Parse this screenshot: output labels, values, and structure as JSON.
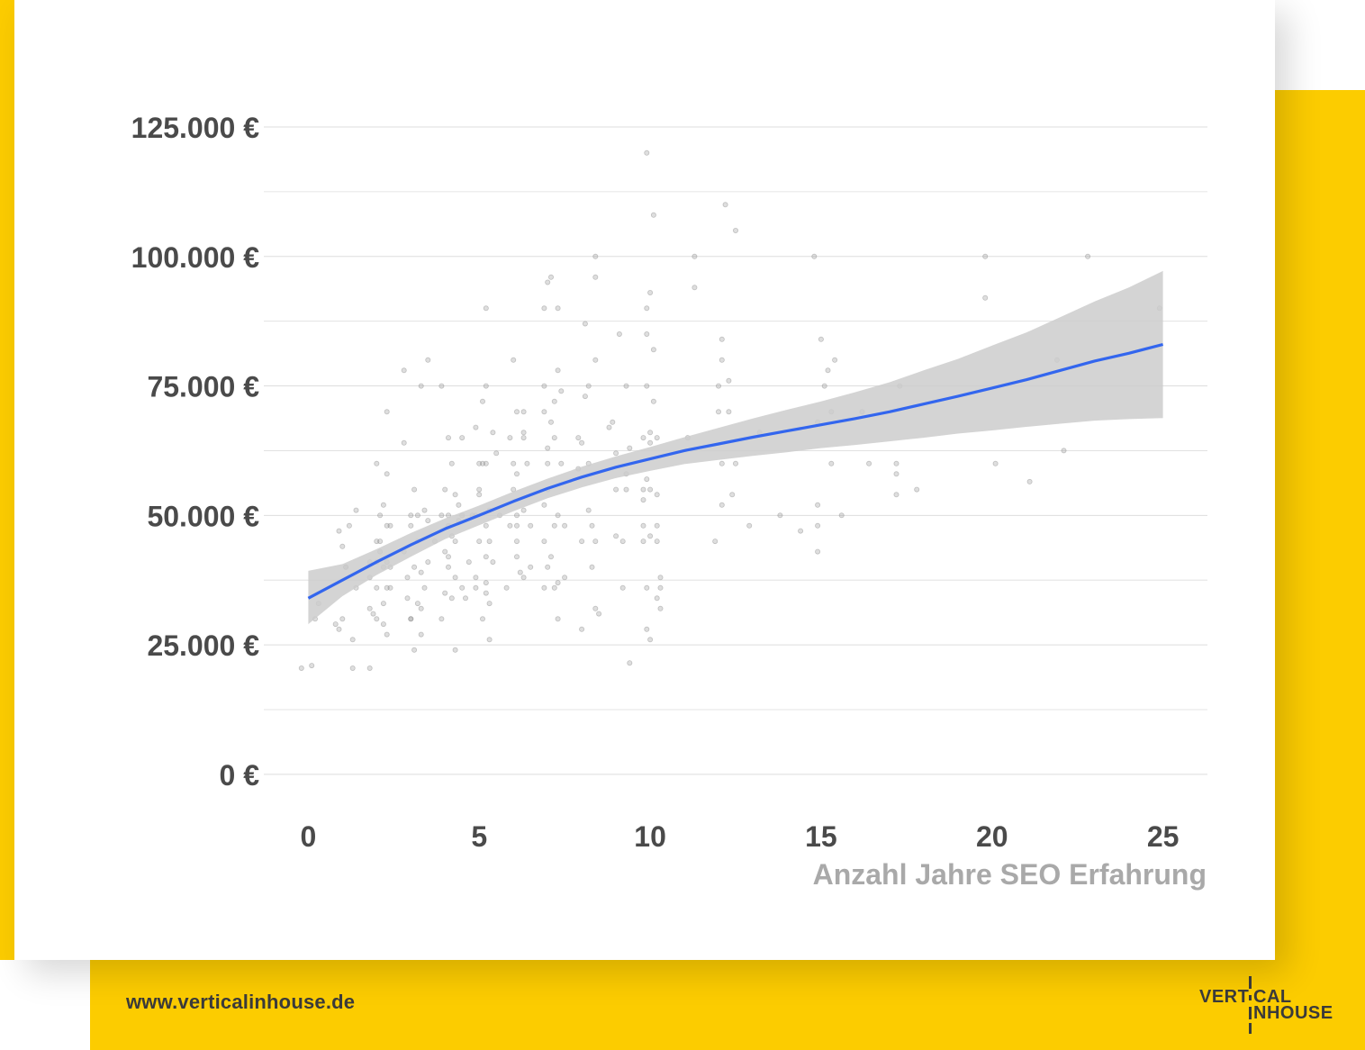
{
  "colors": {
    "accent_yellow": "#fccc00",
    "card": "#ffffff",
    "grid": "#dddddd",
    "tick_text": "#4a4a4a",
    "xlabel_text": "#a9a9a9",
    "points": "#888888",
    "trend_line": "#3366ee",
    "confidence_band": "#cccccc",
    "footer_text": "#3a3a3a"
  },
  "footer": {
    "url": "www.verticalinhouse.de"
  },
  "logo": {
    "text": "VERTICAL INHOUSE",
    "icon": "vertical-inhouse-logo"
  },
  "chart_data": {
    "type": "scatter",
    "title": "",
    "xlabel": "Anzahl Jahre SEO Erfahrung",
    "ylabel": "",
    "xlim": [
      -1.3,
      26.3
    ],
    "ylim": [
      -3500,
      133000
    ],
    "x_ticks": [
      0,
      5,
      10,
      15,
      20,
      25
    ],
    "x_tick_labels": [
      "0",
      "5",
      "10",
      "15",
      "20",
      "25"
    ],
    "y_ticks": [
      0,
      25000,
      50000,
      75000,
      100000,
      125000
    ],
    "y_tick_labels": [
      "0 €",
      "25.000 €",
      "50.000 €",
      "75.000 €",
      "100.000 €",
      "125.000 €"
    ],
    "minor_gridlines_y": [
      12500,
      37500,
      62500,
      87500,
      112500
    ],
    "grid": true,
    "legend": "none",
    "series": [
      {
        "type": "scatter",
        "points": [
          [
            -0.2,
            20500
          ],
          [
            0.1,
            21000
          ],
          [
            0.2,
            30000
          ],
          [
            0.3,
            33000
          ],
          [
            0.8,
            29000
          ],
          [
            0.9,
            28000
          ],
          [
            0.9,
            47000
          ],
          [
            1.0,
            30000
          ],
          [
            1.0,
            44000
          ],
          [
            1.1,
            40000
          ],
          [
            1.1,
            40000
          ],
          [
            1.2,
            48000
          ],
          [
            1.3,
            26000
          ],
          [
            1.3,
            20500
          ],
          [
            1.4,
            36000
          ],
          [
            1.4,
            51000
          ],
          [
            1.8,
            38000
          ],
          [
            1.8,
            41000
          ],
          [
            1.8,
            20500
          ],
          [
            1.8,
            32000
          ],
          [
            1.9,
            31000
          ],
          [
            2.0,
            45000
          ],
          [
            2.0,
            60000
          ],
          [
            2.0,
            30000
          ],
          [
            2.0,
            36000
          ],
          [
            2.0,
            41000
          ],
          [
            2.1,
            43000
          ],
          [
            2.1,
            45000
          ],
          [
            2.1,
            50000
          ],
          [
            2.2,
            52000
          ],
          [
            2.2,
            40000
          ],
          [
            2.2,
            29000
          ],
          [
            2.2,
            33000
          ],
          [
            2.3,
            36000
          ],
          [
            2.3,
            70000
          ],
          [
            2.3,
            58000
          ],
          [
            2.3,
            48000
          ],
          [
            2.3,
            41000
          ],
          [
            2.3,
            27000
          ],
          [
            2.4,
            36000
          ],
          [
            2.4,
            40000
          ],
          [
            2.4,
            48000
          ],
          [
            2.8,
            64000
          ],
          [
            2.8,
            43000
          ],
          [
            2.8,
            78000
          ],
          [
            2.9,
            34000
          ],
          [
            2.9,
            38000
          ],
          [
            3.0,
            48000
          ],
          [
            3.0,
            50000
          ],
          [
            3.0,
            30000
          ],
          [
            3.0,
            30000
          ],
          [
            3.1,
            55000
          ],
          [
            3.1,
            40000
          ],
          [
            3.1,
            24000
          ],
          [
            3.2,
            45000
          ],
          [
            3.2,
            33000
          ],
          [
            3.2,
            50000
          ],
          [
            3.3,
            75000
          ],
          [
            3.3,
            39000
          ],
          [
            3.3,
            27000
          ],
          [
            3.3,
            32000
          ],
          [
            3.4,
            36000
          ],
          [
            3.4,
            51000
          ],
          [
            3.5,
            80000
          ],
          [
            3.5,
            49000
          ],
          [
            3.5,
            41000
          ],
          [
            3.7,
            45000
          ],
          [
            3.9,
            50000
          ],
          [
            3.9,
            30000
          ],
          [
            3.9,
            75000
          ],
          [
            4.0,
            55000
          ],
          [
            4.0,
            43000
          ],
          [
            4.0,
            35000
          ],
          [
            4.1,
            50000
          ],
          [
            4.1,
            40000
          ],
          [
            4.1,
            48000
          ],
          [
            4.1,
            65000
          ],
          [
            4.1,
            42000
          ],
          [
            4.2,
            46000
          ],
          [
            4.2,
            34000
          ],
          [
            4.2,
            60000
          ],
          [
            4.3,
            54000
          ],
          [
            4.3,
            45000
          ],
          [
            4.3,
            24000
          ],
          [
            4.3,
            38000
          ],
          [
            4.4,
            49000
          ],
          [
            4.4,
            52000
          ],
          [
            4.5,
            50000
          ],
          [
            4.5,
            36000
          ],
          [
            4.5,
            65000
          ],
          [
            4.6,
            34000
          ],
          [
            4.7,
            41000
          ],
          [
            4.8,
            50000
          ],
          [
            4.9,
            50000
          ],
          [
            4.9,
            38000
          ],
          [
            4.9,
            36000
          ],
          [
            4.9,
            67000
          ],
          [
            5.0,
            55000
          ],
          [
            5.0,
            60000
          ],
          [
            5.0,
            54000
          ],
          [
            5.0,
            45000
          ],
          [
            5.1,
            60000
          ],
          [
            5.1,
            30000
          ],
          [
            5.1,
            72000
          ],
          [
            5.2,
            90000
          ],
          [
            5.2,
            75000
          ],
          [
            5.2,
            48000
          ],
          [
            5.2,
            42000
          ],
          [
            5.2,
            35000
          ],
          [
            5.2,
            37000
          ],
          [
            5.2,
            60000
          ],
          [
            5.3,
            51000
          ],
          [
            5.3,
            26000
          ],
          [
            5.3,
            33000
          ],
          [
            5.3,
            45000
          ],
          [
            5.4,
            66000
          ],
          [
            5.4,
            41000
          ],
          [
            5.5,
            62000
          ],
          [
            5.6,
            50000
          ],
          [
            5.8,
            36000
          ],
          [
            5.9,
            48000
          ],
          [
            5.9,
            65000
          ],
          [
            6.0,
            80000
          ],
          [
            6.0,
            60000
          ],
          [
            6.0,
            55000
          ],
          [
            6.1,
            50000
          ],
          [
            6.1,
            58000
          ],
          [
            6.1,
            48000
          ],
          [
            6.1,
            45000
          ],
          [
            6.1,
            70000
          ],
          [
            6.1,
            42000
          ],
          [
            6.2,
            39000
          ],
          [
            6.3,
            70000
          ],
          [
            6.3,
            51000
          ],
          [
            6.3,
            38000
          ],
          [
            6.3,
            65000
          ],
          [
            6.3,
            66000
          ],
          [
            6.4,
            60000
          ],
          [
            6.5,
            40000
          ],
          [
            6.5,
            48000
          ],
          [
            6.9,
            90000
          ],
          [
            6.9,
            75000
          ],
          [
            6.9,
            70000
          ],
          [
            6.9,
            52000
          ],
          [
            6.9,
            45000
          ],
          [
            6.9,
            36000
          ],
          [
            7.0,
            55000
          ],
          [
            7.0,
            63000
          ],
          [
            7.0,
            60000
          ],
          [
            7.0,
            40000
          ],
          [
            7.0,
            95000
          ],
          [
            7.1,
            96000
          ],
          [
            7.1,
            68000
          ],
          [
            7.1,
            42000
          ],
          [
            7.2,
            65000
          ],
          [
            7.2,
            48000
          ],
          [
            7.2,
            72000
          ],
          [
            7.2,
            36000
          ],
          [
            7.3,
            90000
          ],
          [
            7.3,
            78000
          ],
          [
            7.3,
            50000
          ],
          [
            7.3,
            30000
          ],
          [
            7.3,
            37000
          ],
          [
            7.4,
            60000
          ],
          [
            7.4,
            74000
          ],
          [
            7.5,
            38000
          ],
          [
            7.5,
            48000
          ],
          [
            7.9,
            65000
          ],
          [
            7.9,
            59000
          ],
          [
            8.0,
            45000
          ],
          [
            8.0,
            28000
          ],
          [
            8.0,
            64000
          ],
          [
            8.1,
            87000
          ],
          [
            8.1,
            73000
          ],
          [
            8.2,
            51000
          ],
          [
            8.2,
            75000
          ],
          [
            8.2,
            60000
          ],
          [
            8.3,
            40000
          ],
          [
            8.3,
            48000
          ],
          [
            8.4,
            96000
          ],
          [
            8.4,
            100000
          ],
          [
            8.4,
            32000
          ],
          [
            8.4,
            45000
          ],
          [
            8.4,
            80000
          ],
          [
            8.5,
            31000
          ],
          [
            8.8,
            67000
          ],
          [
            8.9,
            68000
          ],
          [
            9.0,
            55000
          ],
          [
            9.0,
            46000
          ],
          [
            9.0,
            62000
          ],
          [
            9.1,
            85000
          ],
          [
            9.2,
            36000
          ],
          [
            9.2,
            45000
          ],
          [
            9.3,
            75000
          ],
          [
            9.3,
            55000
          ],
          [
            9.3,
            58000
          ],
          [
            9.4,
            21500
          ],
          [
            9.4,
            63000
          ],
          [
            9.8,
            55000
          ],
          [
            9.8,
            48000
          ],
          [
            9.8,
            53000
          ],
          [
            9.8,
            65000
          ],
          [
            9.8,
            45000
          ],
          [
            9.9,
            120000
          ],
          [
            9.9,
            85000
          ],
          [
            9.9,
            90000
          ],
          [
            9.9,
            75000
          ],
          [
            9.9,
            57000
          ],
          [
            9.9,
            36000
          ],
          [
            9.9,
            28000
          ],
          [
            10.0,
            55000
          ],
          [
            10.0,
            64000
          ],
          [
            10.0,
            93000
          ],
          [
            10.0,
            66000
          ],
          [
            10.0,
            46000
          ],
          [
            10.0,
            26000
          ],
          [
            10.1,
            108000
          ],
          [
            10.1,
            82000
          ],
          [
            10.1,
            72000
          ],
          [
            10.2,
            54000
          ],
          [
            10.2,
            48000
          ],
          [
            10.2,
            45000
          ],
          [
            10.2,
            34000
          ],
          [
            10.2,
            65000
          ],
          [
            10.3,
            32000
          ],
          [
            10.3,
            36000
          ],
          [
            10.3,
            38000
          ],
          [
            11.1,
            65000
          ],
          [
            11.3,
            100000
          ],
          [
            11.3,
            94000
          ],
          [
            11.9,
            45000
          ],
          [
            12.0,
            75000
          ],
          [
            12.0,
            70000
          ],
          [
            12.1,
            84000
          ],
          [
            12.1,
            80000
          ],
          [
            12.1,
            52000
          ],
          [
            12.1,
            60000
          ],
          [
            12.2,
            110000
          ],
          [
            12.3,
            76000
          ],
          [
            12.3,
            70000
          ],
          [
            12.4,
            54000
          ],
          [
            12.5,
            105000
          ],
          [
            12.5,
            60000
          ],
          [
            12.9,
            48000
          ],
          [
            13.2,
            66000
          ],
          [
            13.8,
            50000
          ],
          [
            14.4,
            47000
          ],
          [
            14.8,
            100000
          ],
          [
            14.9,
            68000
          ],
          [
            14.9,
            52000
          ],
          [
            14.9,
            48000
          ],
          [
            14.9,
            43000
          ],
          [
            15.0,
            84000
          ],
          [
            15.1,
            75000
          ],
          [
            15.2,
            78000
          ],
          [
            15.3,
            70000
          ],
          [
            15.3,
            60000
          ],
          [
            15.4,
            80000
          ],
          [
            15.6,
            50000
          ],
          [
            16.2,
            70000
          ],
          [
            16.4,
            60000
          ],
          [
            17.2,
            60000
          ],
          [
            17.2,
            58000
          ],
          [
            17.2,
            54000
          ],
          [
            17.3,
            75000
          ],
          [
            17.8,
            55000
          ],
          [
            19.8,
            92000
          ],
          [
            19.8,
            100000
          ],
          [
            20.1,
            60000
          ],
          [
            21.1,
            56500
          ],
          [
            21.9,
            80000
          ],
          [
            22.1,
            62500
          ],
          [
            22.8,
            100000
          ],
          [
            24.9,
            90000
          ]
        ]
      },
      {
        "type": "line",
        "fit": "loess",
        "x": [
          0,
          1,
          2,
          3,
          4,
          5,
          6,
          7,
          8,
          9,
          10,
          11,
          12,
          13,
          14,
          15,
          16,
          17,
          18,
          19,
          20,
          21,
          22,
          23,
          24,
          25
        ],
        "y": [
          34000,
          37500,
          41000,
          44300,
          47400,
          50000,
          52700,
          55200,
          57400,
          59300,
          60900,
          62500,
          63800,
          65100,
          66300,
          67500,
          68700,
          70000,
          71500,
          73000,
          74600,
          76200,
          78000,
          79800,
          81300,
          83000
        ],
        "ci_lower": [
          29000,
          34400,
          38500,
          42000,
          45400,
          48100,
          50800,
          53300,
          55400,
          57200,
          58600,
          59900,
          60700,
          61500,
          62200,
          63000,
          63600,
          64300,
          65000,
          65800,
          66400,
          67100,
          67700,
          68300,
          68600,
          68800
        ],
        "ci_upper": [
          39300,
          40600,
          43500,
          46600,
          49400,
          51900,
          54600,
          57100,
          59400,
          61400,
          63200,
          65100,
          66900,
          68700,
          70400,
          72000,
          73800,
          75700,
          78000,
          80200,
          82800,
          85300,
          88300,
          91300,
          94000,
          97200
        ]
      }
    ]
  }
}
